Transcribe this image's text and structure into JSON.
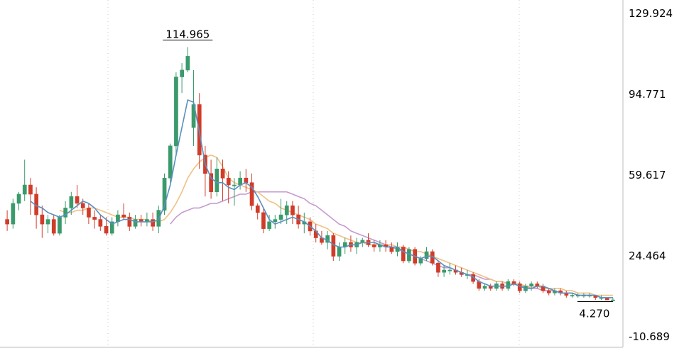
{
  "chart_data": {
    "type": "candlestick",
    "title": "",
    "xlabel": "",
    "ylabel": "",
    "ylim": [
      -10.689,
      129.924
    ],
    "y_ticks": [
      "129.924",
      "94.771",
      "59.617",
      "24.464",
      "-10.689"
    ],
    "y_tick_values": [
      129.924,
      94.771,
      59.617,
      24.464,
      -10.689
    ],
    "grid": true,
    "legend": "none",
    "annotations": {
      "high_label": "114.965",
      "high_value": 114.965,
      "high_index": 31,
      "low_label": "4.270",
      "low_value": 4.27,
      "low_index": 104
    },
    "colors": {
      "up": "#3a9a6b",
      "down": "#d03c2a",
      "ma_fast": "#5b8fbf",
      "ma_mid": "#f0c184",
      "ma_slow": "#c69bd0",
      "grid": "#c9c9c9",
      "axis_text": "#000000"
    },
    "candles": [
      [
        40,
        44,
        35,
        38
      ],
      [
        38,
        49,
        36,
        47
      ],
      [
        47,
        52,
        44,
        51
      ],
      [
        51,
        66,
        48,
        55
      ],
      [
        55,
        58,
        42,
        51
      ],
      [
        51,
        54,
        36,
        42
      ],
      [
        42,
        46,
        32,
        38
      ],
      [
        38,
        42,
        34,
        40
      ],
      [
        40,
        42,
        33,
        34
      ],
      [
        34,
        42,
        33,
        41
      ],
      [
        41,
        48,
        38,
        45
      ],
      [
        45,
        52,
        42,
        50
      ],
      [
        50,
        55,
        45,
        47
      ],
      [
        47,
        49,
        42,
        45
      ],
      [
        45,
        47,
        38,
        41
      ],
      [
        41,
        44,
        36,
        40
      ],
      [
        40,
        42,
        35,
        37
      ],
      [
        37,
        41,
        33,
        34
      ],
      [
        34,
        41,
        33,
        39
      ],
      [
        39,
        44,
        37,
        42
      ],
      [
        42,
        47,
        40,
        41
      ],
      [
        41,
        43,
        35,
        37
      ],
      [
        37,
        42,
        36,
        40
      ],
      [
        40,
        42,
        37,
        39
      ],
      [
        39,
        43,
        37,
        40
      ],
      [
        40,
        43,
        35,
        37
      ],
      [
        37,
        46,
        34,
        44
      ],
      [
        44,
        60,
        42,
        58
      ],
      [
        58,
        73,
        56,
        72
      ],
      [
        72,
        104,
        68,
        102
      ],
      [
        102,
        108,
        95,
        105
      ],
      [
        105,
        115,
        104,
        111
      ],
      [
        80,
        105,
        72,
        90
      ],
      [
        90,
        95,
        62,
        68
      ],
      [
        68,
        72,
        50,
        60
      ],
      [
        60,
        66,
        49,
        52
      ],
      [
        52,
        67,
        50,
        62
      ],
      [
        62,
        66,
        48,
        58
      ],
      [
        58,
        61,
        47,
        55
      ],
      [
        55,
        58,
        46,
        55
      ],
      [
        55,
        61,
        53,
        58
      ],
      [
        58,
        62,
        52,
        56
      ],
      [
        56,
        60,
        44,
        46
      ],
      [
        46,
        47,
        40,
        43
      ],
      [
        43,
        45,
        34,
        36
      ],
      [
        36,
        42,
        35,
        39
      ],
      [
        39,
        42,
        36,
        40
      ],
      [
        40,
        49,
        38,
        42
      ],
      [
        42,
        48,
        38,
        46
      ],
      [
        46,
        48,
        38,
        42
      ],
      [
        42,
        46,
        36,
        38
      ],
      [
        38,
        43,
        34,
        39
      ],
      [
        39,
        41,
        33,
        35
      ],
      [
        35,
        38,
        30,
        32
      ],
      [
        32,
        35,
        29,
        30
      ],
      [
        30,
        35,
        27,
        33
      ],
      [
        33,
        34,
        22,
        24
      ],
      [
        24,
        30,
        22,
        28
      ],
      [
        28,
        32,
        25,
        30
      ],
      [
        30,
        33,
        26,
        28
      ],
      [
        28,
        32,
        25,
        30
      ],
      [
        30,
        32,
        28,
        31
      ],
      [
        31,
        34,
        28,
        29
      ],
      [
        29,
        31,
        26,
        28
      ],
      [
        28,
        31,
        26,
        29
      ],
      [
        29,
        31,
        26,
        28
      ],
      [
        28,
        30,
        25,
        26
      ],
      [
        26,
        30,
        24,
        28
      ],
      [
        28,
        29,
        21,
        22
      ],
      [
        22,
        28,
        21,
        27
      ],
      [
        27,
        28,
        20,
        21
      ],
      [
        21,
        24,
        20,
        23
      ],
      [
        23,
        28,
        22,
        26
      ],
      [
        26,
        27,
        20,
        21
      ],
      [
        21,
        22,
        15,
        17
      ],
      [
        17,
        20,
        15,
        18
      ],
      [
        18,
        21,
        16,
        18
      ],
      [
        18,
        20,
        16,
        17
      ],
      [
        17,
        19,
        15,
        16
      ],
      [
        16,
        18,
        14,
        16
      ],
      [
        16,
        17,
        12,
        13
      ],
      [
        13,
        14,
        9,
        10
      ],
      [
        10,
        12,
        9,
        11
      ],
      [
        11,
        12,
        9,
        10
      ],
      [
        10,
        13,
        9,
        12
      ],
      [
        12,
        13,
        9,
        10
      ],
      [
        10,
        14,
        9,
        13
      ],
      [
        13,
        14,
        11,
        12
      ],
      [
        12,
        13,
        8,
        9
      ],
      [
        9,
        12,
        8,
        11
      ],
      [
        11,
        13,
        9,
        12
      ],
      [
        12,
        13,
        10,
        11
      ],
      [
        11,
        12,
        8,
        9
      ],
      [
        9,
        10,
        7,
        8
      ],
      [
        8,
        10,
        7,
        9
      ],
      [
        9,
        10,
        7,
        8
      ],
      [
        8,
        9,
        6,
        7
      ],
      [
        7,
        8,
        6,
        7
      ],
      [
        7,
        8,
        6,
        7
      ],
      [
        7,
        8,
        6,
        7
      ],
      [
        7,
        8,
        6,
        7
      ],
      [
        7,
        7,
        5,
        6
      ],
      [
        6,
        7,
        5,
        6
      ],
      [
        6,
        6,
        5,
        5
      ],
      [
        5,
        6,
        4.27,
        5
      ]
    ],
    "ma_fast": [
      null,
      null,
      null,
      null,
      48,
      46,
      45,
      43,
      42,
      41,
      42,
      44,
      46,
      48,
      47,
      45,
      42,
      40,
      38,
      39,
      40,
      40,
      39,
      39,
      39,
      39,
      40,
      46,
      55,
      68,
      80,
      92,
      91,
      78,
      64,
      58,
      56,
      56,
      54,
      53,
      55,
      56,
      54,
      50,
      45,
      40,
      38,
      39,
      40,
      41,
      40,
      39,
      37,
      35,
      32,
      31,
      29,
      28,
      28,
      29,
      29,
      30,
      30,
      30,
      29,
      28,
      28,
      28,
      26,
      25,
      24,
      23,
      24,
      24,
      22,
      20,
      19,
      18,
      17,
      16,
      15,
      13,
      12,
      11,
      11,
      11,
      11,
      12,
      11,
      10,
      10,
      11,
      11,
      10,
      9,
      8,
      8,
      8,
      7,
      7,
      7,
      7,
      6,
      6,
      6
    ],
    "ma_mid": [
      null,
      null,
      null,
      null,
      null,
      null,
      null,
      null,
      null,
      44,
      43,
      43,
      44,
      44,
      45,
      45,
      44,
      43,
      42,
      41,
      41,
      41,
      40,
      40,
      40,
      39,
      39,
      40,
      43,
      47,
      52,
      58,
      62,
      65,
      67,
      68,
      67,
      63,
      58,
      56,
      55,
      54,
      53,
      52,
      50,
      48,
      47,
      45,
      44,
      43,
      42,
      41,
      40,
      38,
      37,
      36,
      34,
      33,
      32,
      31,
      30,
      30,
      29,
      29,
      29,
      29,
      29,
      28,
      28,
      27,
      26,
      26,
      25,
      24,
      23,
      22,
      21,
      20,
      19,
      18,
      17,
      16,
      15,
      14,
      13,
      13,
      12,
      12,
      12,
      11,
      11,
      11,
      10,
      10,
      10,
      10,
      9,
      9,
      8,
      8,
      8,
      7,
      7,
      7,
      7
    ],
    "ma_slow": [
      null,
      null,
      null,
      null,
      null,
      null,
      null,
      null,
      null,
      null,
      null,
      null,
      null,
      null,
      null,
      null,
      null,
      null,
      null,
      null,
      null,
      null,
      null,
      null,
      null,
      null,
      null,
      null,
      38,
      41,
      43,
      44,
      45,
      45,
      46,
      47,
      47,
      48,
      49,
      50,
      51,
      51,
      52,
      52,
      52,
      52,
      52,
      52,
      52,
      51,
      50,
      49,
      47,
      46,
      44,
      42,
      40,
      38,
      37,
      35,
      34,
      33,
      32,
      31,
      30,
      29,
      28,
      27,
      26,
      25,
      24,
      23,
      22,
      21,
      20,
      19,
      19,
      18,
      17,
      16,
      16,
      15,
      14,
      14,
      13,
      13,
      12,
      12,
      11,
      11,
      10,
      10,
      9,
      9,
      9,
      8,
      8,
      8,
      7,
      7,
      7,
      7,
      6,
      6,
      6
    ]
  }
}
